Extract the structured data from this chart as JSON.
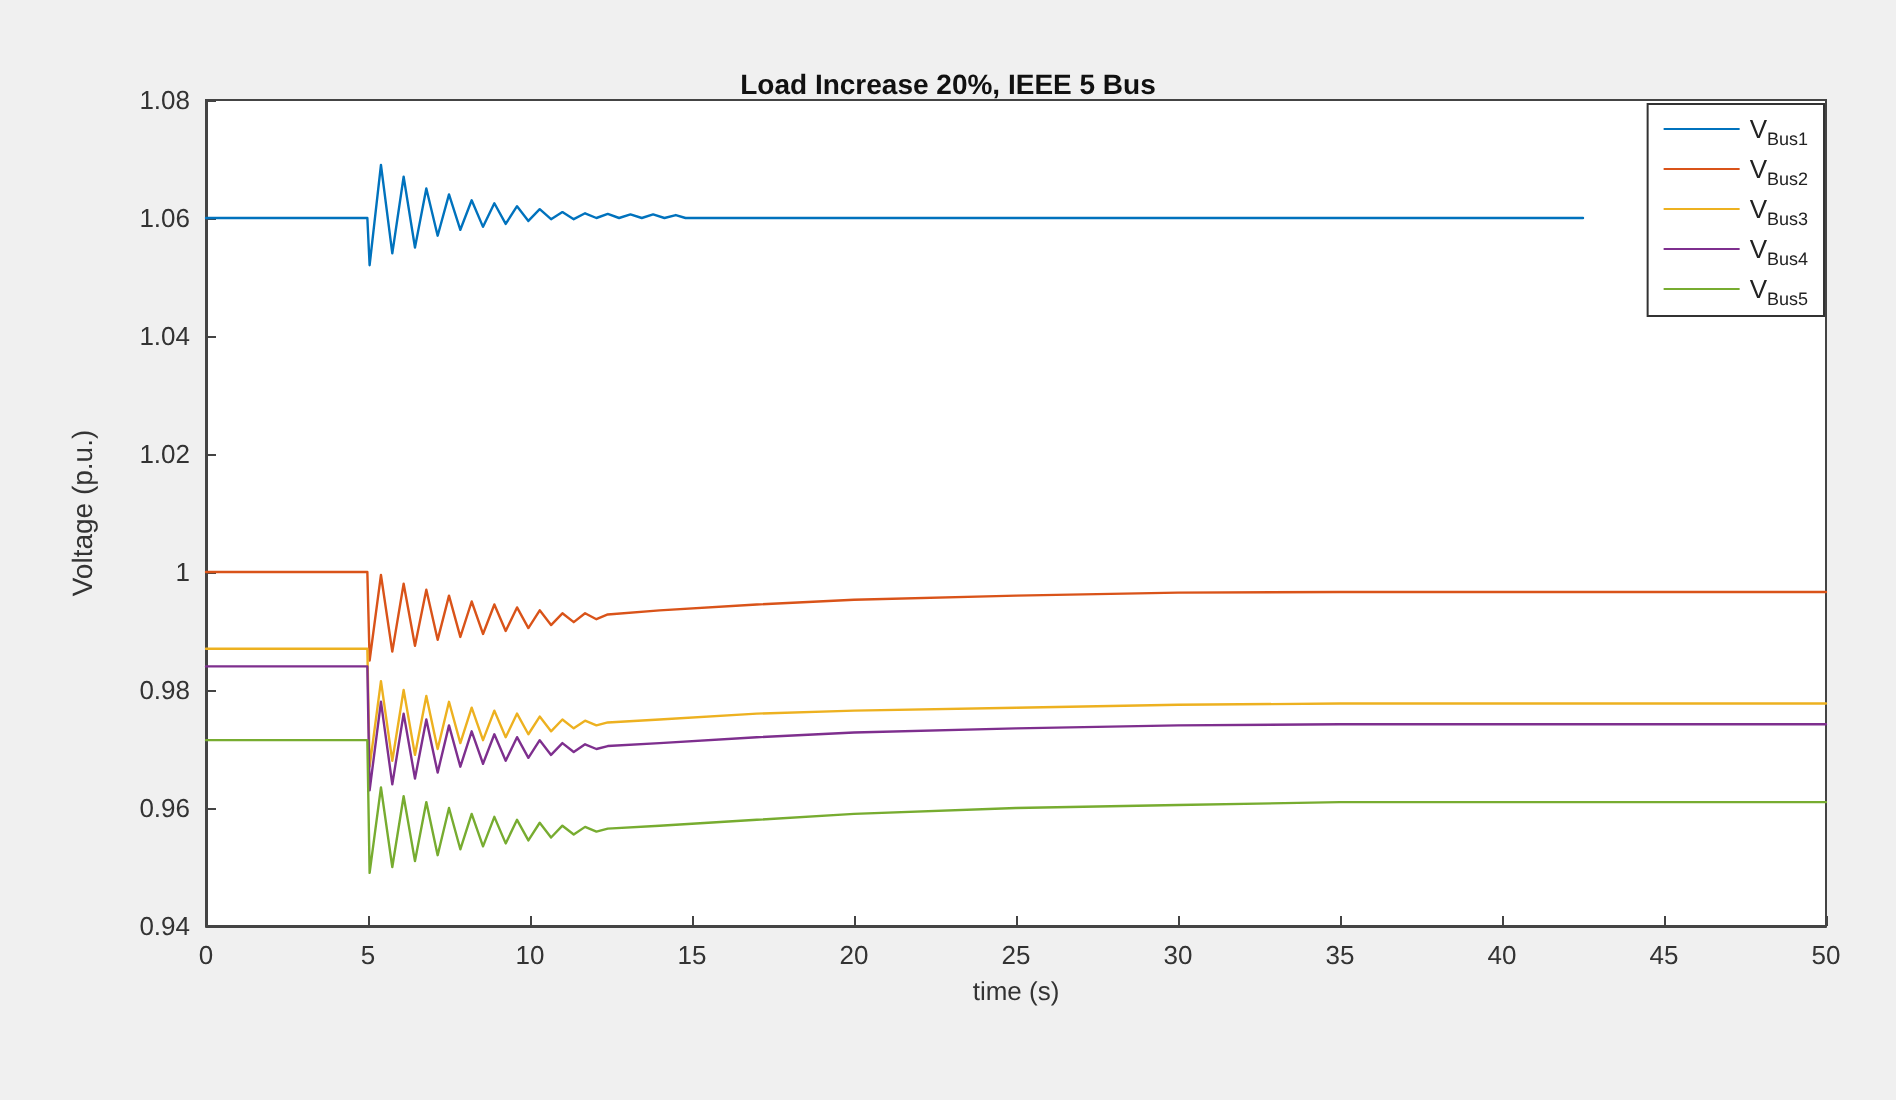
{
  "chart_data": {
    "type": "line",
    "title": "Load Increase 20%, IEEE 5 Bus",
    "xlabel": "time (s)",
    "ylabel": "Voltage (p.u.)",
    "xlim": [
      0,
      50
    ],
    "xticks": [
      0,
      5,
      10,
      15,
      20,
      25,
      30,
      35,
      40,
      45,
      50
    ],
    "ylim": [
      0.94,
      1.08
    ],
    "yticks": [
      0.94,
      0.96,
      0.98,
      1,
      1.02,
      1.04,
      1.06,
      1.08
    ],
    "grid": false,
    "legend": "top right",
    "marker": "none",
    "line_style": "solid",
    "series": [
      {
        "name": "V$_{Bus1}$",
        "color": "#0072bd",
        "x": [
          0,
          4.98,
          5.05,
          5.4,
          5.75,
          6.1,
          6.45,
          6.8,
          7.15,
          7.5,
          7.85,
          8.2,
          8.55,
          8.9,
          9.25,
          9.6,
          9.95,
          10.3,
          10.65,
          11.0,
          11.35,
          11.7,
          12.05,
          12.4,
          12.75,
          13.1,
          13.45,
          13.8,
          14.15,
          14.5,
          14.8,
          42.5
        ],
        "values": [
          1.06,
          1.06,
          1.052,
          1.069,
          1.054,
          1.067,
          1.055,
          1.065,
          1.057,
          1.064,
          1.058,
          1.063,
          1.0585,
          1.0625,
          1.059,
          1.062,
          1.0595,
          1.0615,
          1.0598,
          1.061,
          1.0598,
          1.0608,
          1.06,
          1.0607,
          1.06,
          1.0606,
          1.06,
          1.0606,
          1.06,
          1.0605,
          1.06,
          1.06
        ]
      },
      {
        "name": "V$_{Bus2}$",
        "color": "#d95319",
        "x": [
          0,
          4.98,
          5.05,
          5.4,
          5.75,
          6.1,
          6.45,
          6.8,
          7.15,
          7.5,
          7.85,
          8.2,
          8.55,
          8.9,
          9.25,
          9.6,
          9.95,
          10.3,
          10.65,
          11.0,
          11.35,
          11.7,
          12.05,
          12.4,
          14,
          17,
          20,
          25,
          30,
          35,
          50
        ],
        "values": [
          1.0,
          1.0,
          0.985,
          0.9995,
          0.9865,
          0.998,
          0.9875,
          0.997,
          0.9885,
          0.996,
          0.989,
          0.995,
          0.9895,
          0.9945,
          0.99,
          0.994,
          0.9905,
          0.9935,
          0.991,
          0.993,
          0.9915,
          0.993,
          0.992,
          0.9928,
          0.9935,
          0.9945,
          0.9953,
          0.996,
          0.9965,
          0.9966,
          0.9966
        ]
      },
      {
        "name": "V$_{Bus3}$",
        "color": "#edb120",
        "x": [
          0,
          4.98,
          5.05,
          5.4,
          5.75,
          6.1,
          6.45,
          6.8,
          7.15,
          7.5,
          7.85,
          8.2,
          8.55,
          8.9,
          9.25,
          9.6,
          9.95,
          10.3,
          10.65,
          11.0,
          11.35,
          11.7,
          12.05,
          12.4,
          14,
          17,
          20,
          25,
          30,
          35,
          50
        ],
        "values": [
          0.987,
          0.987,
          0.967,
          0.9815,
          0.968,
          0.98,
          0.969,
          0.979,
          0.97,
          0.978,
          0.971,
          0.977,
          0.9715,
          0.9765,
          0.972,
          0.976,
          0.9725,
          0.9755,
          0.973,
          0.975,
          0.9735,
          0.9748,
          0.974,
          0.9745,
          0.975,
          0.976,
          0.9765,
          0.977,
          0.9775,
          0.9777,
          0.9777
        ]
      },
      {
        "name": "V$_{Bus4}$",
        "color": "#7e2f8e",
        "x": [
          0,
          4.98,
          5.05,
          5.4,
          5.75,
          6.1,
          6.45,
          6.8,
          7.15,
          7.5,
          7.85,
          8.2,
          8.55,
          8.9,
          9.25,
          9.6,
          9.95,
          10.3,
          10.65,
          11.0,
          11.35,
          11.7,
          12.05,
          12.4,
          14,
          17,
          20,
          25,
          30,
          35,
          50
        ],
        "values": [
          0.984,
          0.984,
          0.963,
          0.978,
          0.964,
          0.976,
          0.965,
          0.975,
          0.966,
          0.974,
          0.967,
          0.973,
          0.9675,
          0.9725,
          0.968,
          0.972,
          0.9685,
          0.9715,
          0.969,
          0.971,
          0.9695,
          0.9708,
          0.97,
          0.9705,
          0.971,
          0.972,
          0.9728,
          0.9735,
          0.974,
          0.9742,
          0.9742
        ]
      },
      {
        "name": "V$_{Bus5}$",
        "color": "#77ac30",
        "x": [
          0,
          4.98,
          5.05,
          5.4,
          5.75,
          6.1,
          6.45,
          6.8,
          7.15,
          7.5,
          7.85,
          8.2,
          8.55,
          8.9,
          9.25,
          9.6,
          9.95,
          10.3,
          10.65,
          11.0,
          11.35,
          11.7,
          12.05,
          12.4,
          14,
          17,
          20,
          25,
          30,
          35,
          50
        ],
        "values": [
          0.9715,
          0.9715,
          0.949,
          0.9635,
          0.95,
          0.962,
          0.951,
          0.961,
          0.952,
          0.96,
          0.953,
          0.959,
          0.9535,
          0.9585,
          0.954,
          0.958,
          0.9545,
          0.9575,
          0.955,
          0.957,
          0.9555,
          0.9568,
          0.956,
          0.9565,
          0.957,
          0.958,
          0.959,
          0.96,
          0.9605,
          0.961,
          0.961
        ]
      }
    ]
  }
}
